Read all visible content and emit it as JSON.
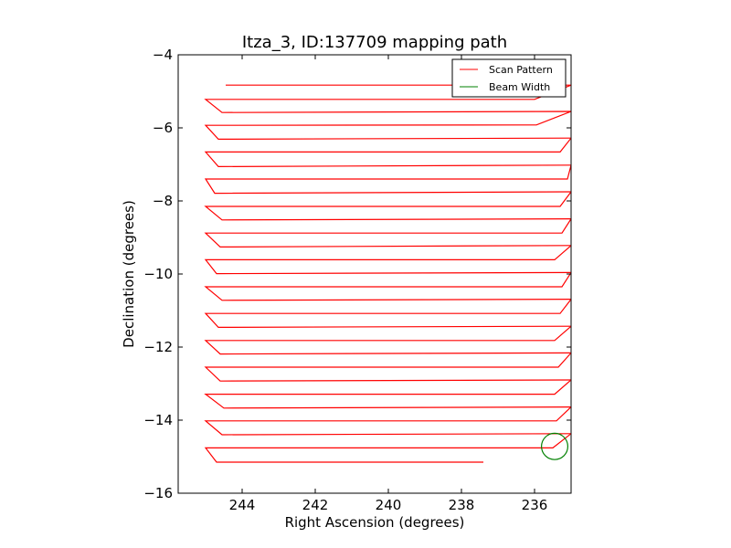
{
  "chart_data": {
    "type": "line",
    "title": "Itza_3, ID:137709 mapping path",
    "xlabel": "Right Ascension (degrees)",
    "ylabel": "Declination (degrees)",
    "xlim": [
      245.75,
      235.0
    ],
    "ylim": [
      -16,
      -4
    ],
    "x_ticks": [
      244,
      242,
      240,
      238,
      236
    ],
    "y_ticks": [
      -16,
      -14,
      -12,
      -10,
      -8,
      -6,
      -4
    ],
    "grid": false,
    "legend": {
      "position": "top-right",
      "entries": [
        {
          "label": "Scan Pattern",
          "color": "#ff0000"
        },
        {
          "label": "Beam Width",
          "color": "#008000"
        }
      ]
    },
    "series": [
      {
        "name": "Scan Pattern",
        "color": "#ff0000",
        "points": [
          [
            244.45,
            -4.83
          ],
          [
            235.0,
            -4.83
          ],
          [
            235.0,
            -4.83
          ],
          [
            236.0,
            -5.22
          ],
          [
            245.0,
            -5.22
          ],
          [
            244.55,
            -5.58
          ],
          [
            235.0,
            -5.55
          ],
          [
            235.95,
            -5.92
          ],
          [
            245.0,
            -5.93
          ],
          [
            244.65,
            -6.31
          ],
          [
            235.0,
            -6.28
          ],
          [
            235.3,
            -6.66
          ],
          [
            245.0,
            -6.66
          ],
          [
            244.65,
            -7.06
          ],
          [
            235.0,
            -7.02
          ],
          [
            235.1,
            -7.4
          ],
          [
            245.0,
            -7.4
          ],
          [
            244.75,
            -7.79
          ],
          [
            235.0,
            -7.75
          ],
          [
            235.3,
            -8.15
          ],
          [
            245.0,
            -8.15
          ],
          [
            244.55,
            -8.52
          ],
          [
            235.0,
            -8.49
          ],
          [
            235.25,
            -8.88
          ],
          [
            245.0,
            -8.88
          ],
          [
            244.6,
            -9.26
          ],
          [
            235.0,
            -9.22
          ],
          [
            235.45,
            -9.61
          ],
          [
            245.0,
            -9.61
          ],
          [
            244.7,
            -9.99
          ],
          [
            235.0,
            -9.96
          ],
          [
            235.25,
            -10.35
          ],
          [
            245.0,
            -10.35
          ],
          [
            244.55,
            -10.72
          ],
          [
            235.0,
            -10.69
          ],
          [
            235.3,
            -11.08
          ],
          [
            245.0,
            -11.08
          ],
          [
            244.65,
            -11.46
          ],
          [
            235.0,
            -11.43
          ],
          [
            235.45,
            -11.82
          ],
          [
            245.0,
            -11.82
          ],
          [
            244.6,
            -12.19
          ],
          [
            235.0,
            -12.16
          ],
          [
            235.35,
            -12.55
          ],
          [
            245.0,
            -12.55
          ],
          [
            244.6,
            -12.93
          ],
          [
            235.0,
            -12.9
          ],
          [
            235.45,
            -13.29
          ],
          [
            245.0,
            -13.29
          ],
          [
            244.5,
            -13.67
          ],
          [
            235.0,
            -13.64
          ],
          [
            235.4,
            -14.02
          ],
          [
            245.0,
            -14.02
          ],
          [
            244.55,
            -14.4
          ],
          [
            235.0,
            -14.37
          ],
          [
            235.5,
            -14.76
          ],
          [
            245.0,
            -14.76
          ],
          [
            244.7,
            -15.15
          ],
          [
            237.4,
            -15.15
          ]
        ]
      }
    ],
    "beam": {
      "name": "Beam Width",
      "color": "#008000",
      "center": [
        235.45,
        -14.72
      ],
      "radius_deg": 0.36
    }
  }
}
